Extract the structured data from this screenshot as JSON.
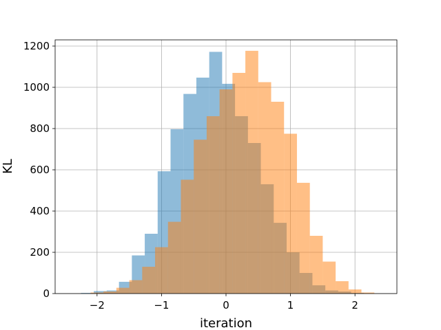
{
  "chart_data": {
    "type": "bar",
    "xlabel": "iteration",
    "ylabel": "KL",
    "xlim": [
      -2.65,
      2.65
    ],
    "ylim": [
      0,
      1230
    ],
    "x_ticks": [
      -2,
      -1,
      0,
      1,
      2
    ],
    "y_ticks": [
      0,
      200,
      400,
      600,
      800,
      1000,
      1200
    ],
    "grid": true,
    "series": [
      {
        "color": "#1f77b4",
        "opacity": 0.5,
        "bins": [
          {
            "x0": -2.25,
            "x1": -2.05,
            "value": 3
          },
          {
            "x0": -2.05,
            "x1": -1.85,
            "value": 12
          },
          {
            "x0": -1.85,
            "x1": -1.66,
            "value": 15
          },
          {
            "x0": -1.66,
            "x1": -1.46,
            "value": 57
          },
          {
            "x0": -1.46,
            "x1": -1.26,
            "value": 185
          },
          {
            "x0": -1.26,
            "x1": -1.06,
            "value": 290
          },
          {
            "x0": -1.06,
            "x1": -0.86,
            "value": 593
          },
          {
            "x0": -0.86,
            "x1": -0.66,
            "value": 797
          },
          {
            "x0": -0.66,
            "x1": -0.46,
            "value": 968
          },
          {
            "x0": -0.46,
            "x1": -0.26,
            "value": 1047
          },
          {
            "x0": -0.26,
            "x1": -0.06,
            "value": 1172
          },
          {
            "x0": -0.06,
            "x1": 0.14,
            "value": 1017
          },
          {
            "x0": 0.14,
            "x1": 0.34,
            "value": 860
          },
          {
            "x0": 0.34,
            "x1": 0.54,
            "value": 730
          },
          {
            "x0": 0.54,
            "x1": 0.74,
            "value": 530
          },
          {
            "x0": 0.74,
            "x1": 0.94,
            "value": 343
          },
          {
            "x0": 0.94,
            "x1": 1.14,
            "value": 200
          },
          {
            "x0": 1.14,
            "x1": 1.34,
            "value": 100
          },
          {
            "x0": 1.34,
            "x1": 1.54,
            "value": 40
          },
          {
            "x0": 1.54,
            "x1": 1.74,
            "value": 15
          },
          {
            "x0": 1.74,
            "x1": 1.94,
            "value": 10
          },
          {
            "x0": 1.94,
            "x1": 2.14,
            "value": 3
          }
        ]
      },
      {
        "color": "#ff7f0e",
        "opacity": 0.5,
        "bins": [
          {
            "x0": -2.1,
            "x1": -1.9,
            "value": 5
          },
          {
            "x0": -1.9,
            "x1": -1.7,
            "value": 10
          },
          {
            "x0": -1.7,
            "x1": -1.5,
            "value": 28
          },
          {
            "x0": -1.5,
            "x1": -1.3,
            "value": 65
          },
          {
            "x0": -1.3,
            "x1": -1.1,
            "value": 130
          },
          {
            "x0": -1.1,
            "x1": -0.9,
            "value": 225
          },
          {
            "x0": -0.9,
            "x1": -0.7,
            "value": 348
          },
          {
            "x0": -0.7,
            "x1": -0.5,
            "value": 552
          },
          {
            "x0": -0.5,
            "x1": -0.3,
            "value": 746
          },
          {
            "x0": -0.3,
            "x1": -0.1,
            "value": 860
          },
          {
            "x0": -0.1,
            "x1": 0.1,
            "value": 990
          },
          {
            "x0": 0.1,
            "x1": 0.3,
            "value": 1070
          },
          {
            "x0": 0.3,
            "x1": 0.5,
            "value": 1177
          },
          {
            "x0": 0.5,
            "x1": 0.7,
            "value": 1025
          },
          {
            "x0": 0.7,
            "x1": 0.9,
            "value": 930
          },
          {
            "x0": 0.9,
            "x1": 1.1,
            "value": 775
          },
          {
            "x0": 1.1,
            "x1": 1.3,
            "value": 537
          },
          {
            "x0": 1.3,
            "x1": 1.5,
            "value": 280
          },
          {
            "x0": 1.5,
            "x1": 1.7,
            "value": 155
          },
          {
            "x0": 1.7,
            "x1": 1.9,
            "value": 60
          },
          {
            "x0": 1.9,
            "x1": 2.1,
            "value": 20
          },
          {
            "x0": 2.1,
            "x1": 2.3,
            "value": 5
          }
        ]
      }
    ]
  }
}
